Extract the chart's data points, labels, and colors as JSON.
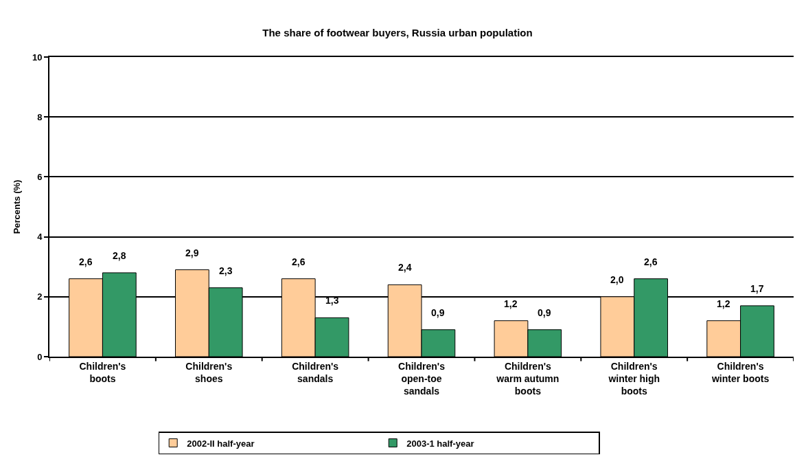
{
  "chart_data": {
    "type": "bar",
    "title": "The share of footwear buyers, Russia urban population",
    "ylabel": "Percents (%)",
    "categories": [
      "Children's boots",
      "Children's shoes",
      "Children's sandals",
      "Children's open-toe sandals",
      "Children's warm autumn boots",
      "Children's winter high boots",
      "Children's winter boots"
    ],
    "series": [
      {
        "name": "2002-II half-year",
        "color": "#ffcc99",
        "values": [
          2.6,
          2.9,
          2.6,
          2.4,
          1.2,
          2.0,
          1.2
        ],
        "value_labels": [
          "2,6",
          "2,9",
          "2,6",
          "2,4",
          "1,2",
          "2,0",
          "1,2"
        ]
      },
      {
        "name": "2003-1 half-year",
        "color": "#339966",
        "values": [
          2.8,
          2.3,
          1.3,
          0.9,
          0.9,
          2.6,
          1.7
        ],
        "value_labels": [
          "2,8",
          "2,3",
          "1,3",
          "0,9",
          "0,9",
          "2,6",
          "1,7"
        ]
      }
    ],
    "ylim": [
      0,
      10
    ],
    "yticks": [
      0,
      2,
      4,
      6,
      8,
      10
    ],
    "grid": "y",
    "legend": "bottom"
  }
}
